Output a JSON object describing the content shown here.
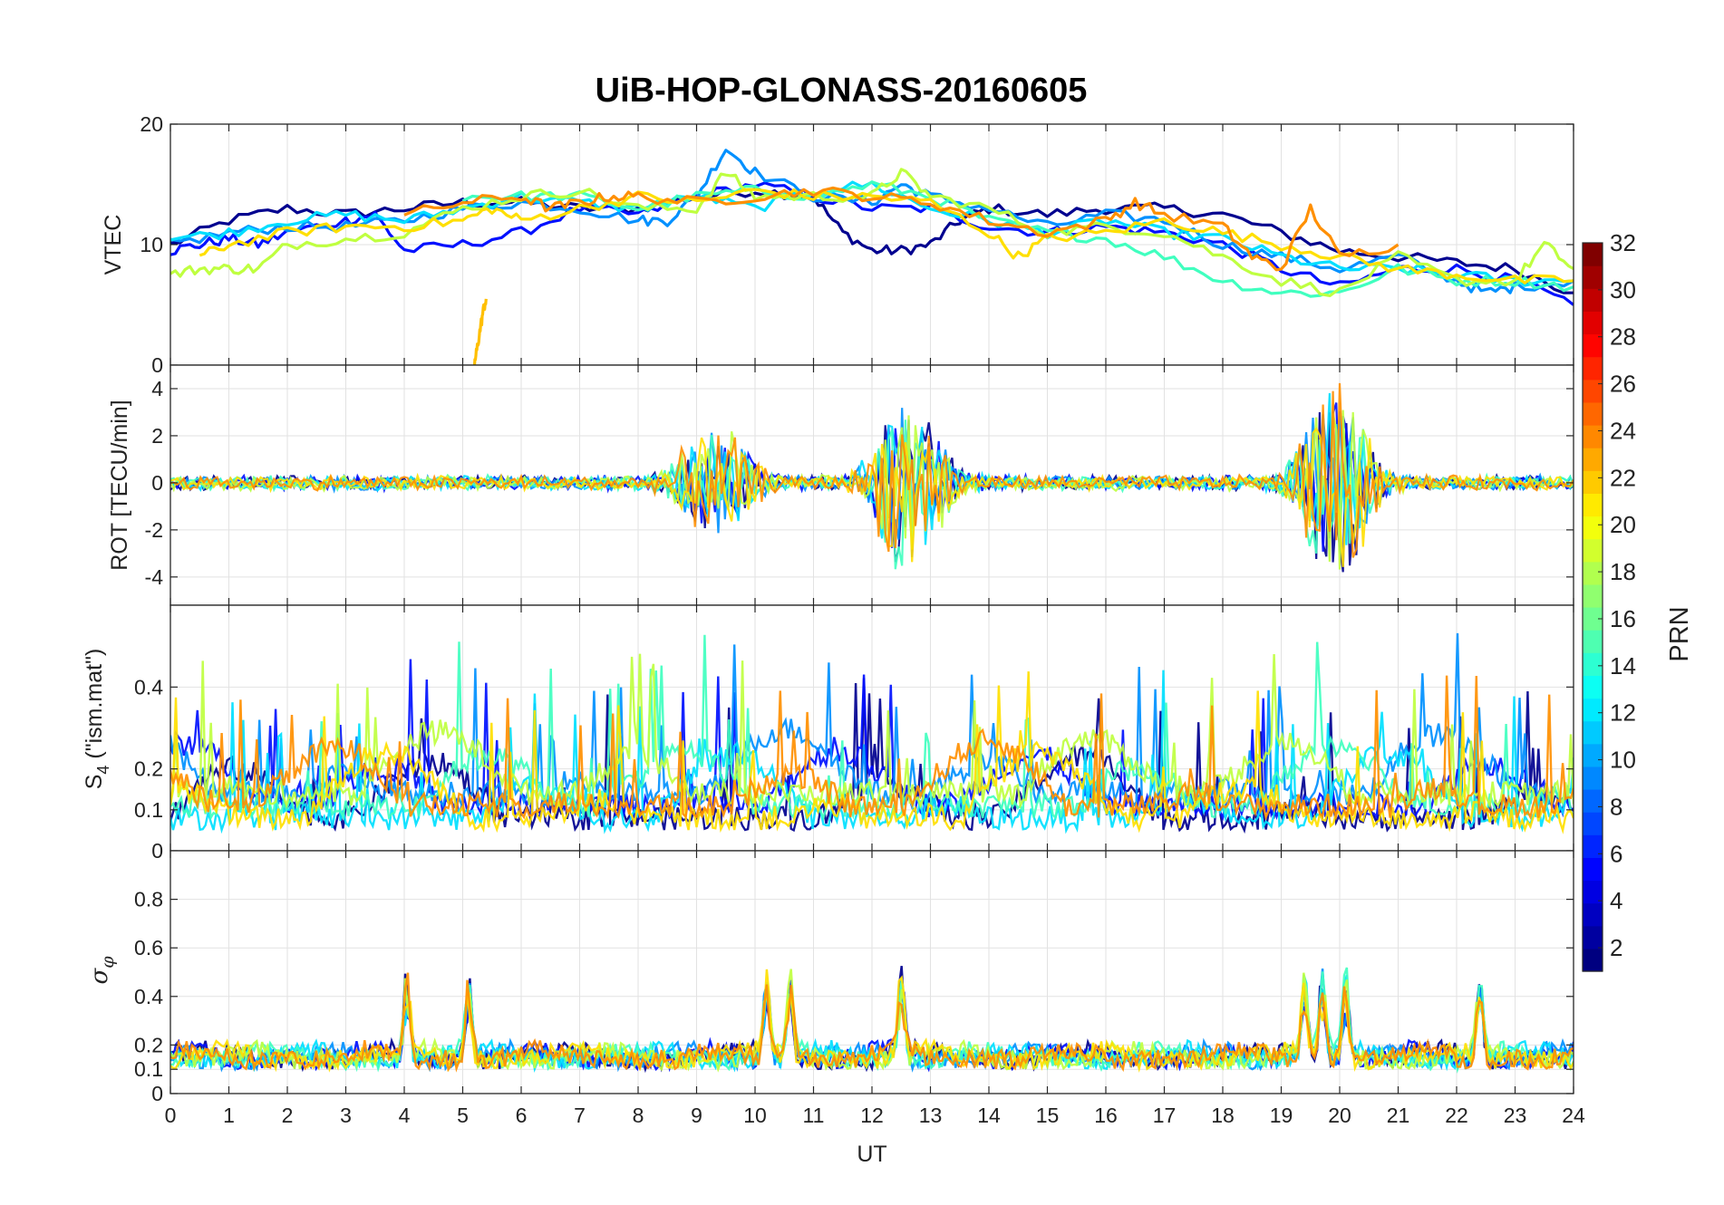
{
  "chart_data": {
    "type": "line",
    "title": "UiB-HOP-GLONASS-20160605",
    "xlabel": "UT",
    "xlim": [
      0,
      24
    ],
    "xticks": [
      0,
      1,
      2,
      3,
      4,
      5,
      6,
      7,
      8,
      9,
      10,
      11,
      12,
      13,
      14,
      15,
      16,
      17,
      18,
      19,
      20,
      21,
      22,
      23,
      24
    ],
    "colorbar": {
      "label": "PRN",
      "colormap": "jet",
      "range": [
        1,
        32
      ],
      "ticks": [
        2,
        4,
        6,
        8,
        10,
        12,
        14,
        16,
        18,
        20,
        22,
        24,
        26,
        28,
        30,
        32
      ]
    },
    "panels": [
      {
        "name": "vtec",
        "ylabel": "VTEC",
        "ylim": [
          0,
          20
        ],
        "yticks": [
          0,
          10,
          20
        ],
        "series": [
          {
            "name": "PRN 1",
            "color": "#00008f",
            "x": [
              0,
              1,
              2,
              3,
              4,
              5,
              6,
              7,
              8,
              9,
              10,
              11,
              11.5,
              12,
              12.5,
              13,
              13.5,
              14,
              15,
              16,
              17,
              18,
              19,
              20,
              21,
              22,
              23,
              24
            ],
            "y": [
              10,
              12,
              13,
              12.5,
              13,
              13.5,
              13.5,
              13,
              13,
              14,
              14.5,
              14,
              11,
              9.5,
              9.5,
              10,
              12,
              13,
              12.5,
              13,
              13,
              12.5,
              11,
              9.5,
              9,
              8.5,
              8,
              6
            ]
          },
          {
            "name": "PRN 4",
            "color": "#0010ff",
            "x": [
              0,
              0.5,
              1,
              1.5,
              2,
              3,
              3.5,
              4,
              5,
              6,
              7,
              8,
              9,
              10,
              11,
              12,
              13,
              14,
              15,
              16,
              17,
              18,
              19,
              20,
              21,
              22,
              23,
              24
            ],
            "y": [
              9.5,
              10,
              10.5,
              10,
              11,
              12,
              12.5,
              9.5,
              10,
              11,
              13,
              12.5,
              14,
              15,
              14,
              13,
              13,
              11.5,
              11,
              11.5,
              11,
              10,
              8,
              6.5,
              8,
              8,
              7,
              5
            ]
          },
          {
            "name": "PRN 9",
            "color": "#0090ff",
            "x": [
              0,
              1,
              2,
              3,
              4,
              5,
              6,
              7,
              8,
              8.5,
              9,
              9.5,
              10,
              11,
              12,
              12.5,
              13,
              14,
              15,
              16,
              17,
              18,
              19,
              20,
              21,
              22,
              22.5,
              23,
              24
            ],
            "y": [
              10,
              11,
              11.5,
              11.5,
              12,
              13,
              13.5,
              13,
              12,
              12,
              14,
              18,
              16,
              14,
              13.5,
              15,
              14,
              13,
              11.5,
              12.5,
              12,
              10,
              9,
              8,
              9,
              7,
              6,
              6.5,
              7
            ]
          },
          {
            "name": "PRN 12",
            "color": "#00dfff",
            "x": [
              0,
              1,
              2,
              3,
              4,
              5,
              6,
              7,
              8,
              9,
              10,
              11,
              12,
              13,
              14,
              15,
              16,
              17,
              18,
              19,
              20,
              21,
              22,
              23,
              24
            ],
            "y": [
              10.5,
              11,
              12,
              12.5,
              12,
              13,
              14,
              13.5,
              13,
              14,
              13,
              14.5,
              15,
              13,
              12,
              11,
              12,
              11,
              10.5,
              9,
              8,
              8,
              7.5,
              7,
              7
            ]
          },
          {
            "name": "PRN 15",
            "color": "#40ffbf",
            "x": [
              5,
              6,
              7,
              8,
              9,
              10,
              11,
              12,
              13,
              14,
              15,
              16,
              17,
              18,
              19,
              20,
              21,
              22,
              23,
              24
            ],
            "y": [
              14,
              14,
              14,
              13,
              14,
              14.5,
              14,
              15,
              14,
              12,
              11,
              10.5,
              9,
              7,
              6,
              6,
              8,
              7,
              7,
              6.5
            ]
          },
          {
            "name": "PRN 18",
            "color": "#bfff40",
            "x": [
              0,
              0.5,
              1,
              1.5,
              2,
              3,
              4,
              5,
              6,
              7,
              8,
              9,
              9.5,
              10,
              11,
              12,
              12.5,
              13,
              14,
              15,
              16,
              17,
              18,
              19,
              20,
              21,
              22,
              23,
              23.5,
              24
            ],
            "y": [
              7.5,
              8,
              8,
              8,
              10,
              10.5,
              11,
              13,
              14,
              14.5,
              13,
              13,
              16,
              14,
              14,
              14,
              16,
              14,
              13,
              11,
              11.5,
              11,
              9,
              7,
              6,
              9,
              7,
              7,
              10,
              8
            ]
          },
          {
            "name": "PRN 20",
            "color": "#ffdf00",
            "x": [
              0.5,
              1,
              2,
              3,
              4,
              5,
              5.5,
              6,
              7,
              8,
              9,
              10,
              11,
              12,
              13,
              14,
              14.5,
              15,
              16,
              17,
              18,
              19,
              20,
              21,
              22,
              23,
              24
            ],
            "y": [
              9,
              10,
              11,
              11.5,
              11.5,
              12,
              13,
              12,
              13,
              14,
              13.5,
              14.5,
              14,
              14,
              13.5,
              11,
              9,
              10.5,
              11,
              12,
              11,
              10,
              9,
              8,
              7.5,
              7,
              7
            ]
          },
          {
            "name": "PRN 22",
            "color": "#ffbf00",
            "x": [
              5.2,
              5.25,
              5.3,
              5.35,
              5.4
            ],
            "y": [
              0,
              1.5,
              3,
              4.5,
              5.5
            ]
          },
          {
            "name": "PRN 24",
            "color": "#ff8f00",
            "x": [
              4,
              5,
              6,
              6.5,
              7,
              7.5,
              8,
              9,
              10,
              11,
              12,
              13,
              14,
              15,
              16,
              16.5,
              17,
              18,
              18.5,
              19,
              19.5,
              20,
              21
            ],
            "y": [
              12.5,
              13.5,
              14,
              13,
              13.5,
              14,
              14,
              13.5,
              14,
              14.5,
              14,
              13.5,
              12,
              11,
              12,
              13.5,
              12.5,
              11.5,
              9,
              8,
              13,
              9,
              10
            ]
          }
        ]
      },
      {
        "name": "rot",
        "ylabel": "ROT [TECU/min]",
        "ylim": [
          -5.2,
          5
        ],
        "yticks": [
          -4,
          -2,
          0,
          2,
          4
        ]
      },
      {
        "name": "s4",
        "ylabel": "S4 (\"ism.mat\")",
        "ylabel_parts": [
          "S",
          "4",
          " (\"ism.mat\")"
        ],
        "ylim": [
          0,
          0.6
        ],
        "yticks": [
          0,
          0.1,
          0.2,
          0.4
        ],
        "ytick_labels": [
          "0",
          "0.1",
          "0.2",
          "0.4"
        ]
      },
      {
        "name": "sigma_phi",
        "ylabel": "σφ",
        "ylabel_parts": [
          "σ",
          "φ"
        ],
        "ylim": [
          0,
          1
        ],
        "yticks": [
          0,
          0.1,
          0.2,
          0.4,
          0.6,
          0.8
        ],
        "ytick_labels": [
          "0",
          "0.1",
          "0.2",
          "0.4",
          "0.6",
          "0.8"
        ]
      }
    ]
  }
}
